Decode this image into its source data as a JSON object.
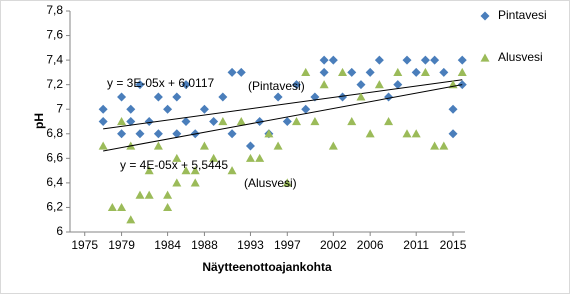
{
  "chart_data": {
    "type": "scatter",
    "x_label": "Näytteenottoajankohta",
    "y_label": "pH",
    "xlim": [
      1973.4,
      2016.3
    ],
    "xticks": [
      1975,
      1979,
      1984,
      1988,
      1993,
      1997,
      2002,
      2006,
      2011,
      2015
    ],
    "ylim": [
      6,
      7.8
    ],
    "yticks": [
      {
        "value": 6,
        "label": "6"
      },
      {
        "value": 6.2,
        "label": "6,2"
      },
      {
        "value": 6.4,
        "label": "6,4"
      },
      {
        "value": 6.6,
        "label": "6,6"
      },
      {
        "value": 6.8,
        "label": "6,8"
      },
      {
        "value": 7,
        "label": "7"
      },
      {
        "value": 7.2,
        "label": "7,2"
      },
      {
        "value": 7.4,
        "label": "7,4"
      },
      {
        "value": 7.6,
        "label": "7,6"
      },
      {
        "value": 7.8,
        "label": "7,8"
      }
    ],
    "legend": "right",
    "series": [
      {
        "name": "Pintavesi",
        "color": "#4a7ebb",
        "marker": "diamond",
        "x": [
          1977,
          1977,
          1979,
          1979,
          1980,
          1980,
          1981,
          1981,
          1982,
          1983,
          1983,
          1984,
          1985,
          1985,
          1986,
          1986,
          1987,
          1988,
          1989,
          1990,
          1991,
          1991,
          1992,
          1993,
          1994,
          1995,
          1996,
          1997,
          1998,
          1999,
          2000,
          2001,
          2001,
          2002,
          2003,
          2004,
          2005,
          2006,
          2007,
          2008,
          2009,
          2010,
          2011,
          2012,
          2013,
          2014,
          2015,
          2015,
          2016,
          2016
        ],
        "values": [
          7.0,
          6.9,
          6.8,
          7.1,
          6.9,
          7.0,
          6.8,
          7.2,
          6.9,
          7.1,
          6.8,
          7.0,
          6.8,
          7.1,
          6.9,
          7.2,
          6.8,
          7.0,
          6.9,
          7.1,
          7.3,
          6.8,
          7.3,
          6.7,
          6.9,
          6.8,
          7.1,
          6.9,
          7.2,
          7.0,
          7.1,
          7.3,
          7.4,
          7.4,
          7.1,
          7.3,
          7.2,
          7.3,
          7.4,
          7.1,
          7.2,
          7.4,
          7.3,
          7.4,
          7.4,
          7.3,
          7.0,
          6.8,
          7.4,
          7.2
        ],
        "trendline": {
          "x": [
            1977,
            2016
          ],
          "values": [
            6.84,
            7.24
          ]
        }
      },
      {
        "name": "Alusvesi",
        "color": "#9bbb59",
        "marker": "triangle",
        "x": [
          1977,
          1978,
          1979,
          1979,
          1980,
          1980,
          1981,
          1982,
          1982,
          1983,
          1984,
          1984,
          1985,
          1985,
          1986,
          1987,
          1987,
          1988,
          1989,
          1990,
          1991,
          1992,
          1993,
          1994,
          1995,
          1996,
          1997,
          1998,
          1999,
          2000,
          2001,
          2002,
          2003,
          2004,
          2005,
          2006,
          2007,
          2008,
          2009,
          2010,
          2011,
          2012,
          2013,
          2014,
          2015,
          2016
        ],
        "values": [
          6.7,
          6.2,
          6.2,
          6.9,
          6.1,
          6.7,
          6.3,
          6.3,
          6.5,
          6.7,
          6.3,
          6.2,
          6.4,
          6.6,
          6.5,
          6.5,
          6.4,
          6.7,
          6.6,
          6.9,
          6.5,
          6.9,
          6.6,
          6.6,
          6.8,
          6.7,
          6.4,
          6.9,
          7.3,
          6.9,
          7.2,
          6.7,
          7.3,
          6.9,
          7.1,
          6.8,
          7.2,
          6.9,
          7.3,
          6.8,
          6.8,
          7.3,
          6.7,
          6.7,
          7.2,
          7.3
        ],
        "trendline": {
          "x": [
            1977,
            2016
          ],
          "values": [
            6.66,
            7.2
          ]
        }
      }
    ],
    "annotations": [
      "y = 3E-05x + 6,0117",
      "(Pintavesi)",
      "y = 4E-05x + 5,5445",
      "(Alusvesi)"
    ]
  }
}
